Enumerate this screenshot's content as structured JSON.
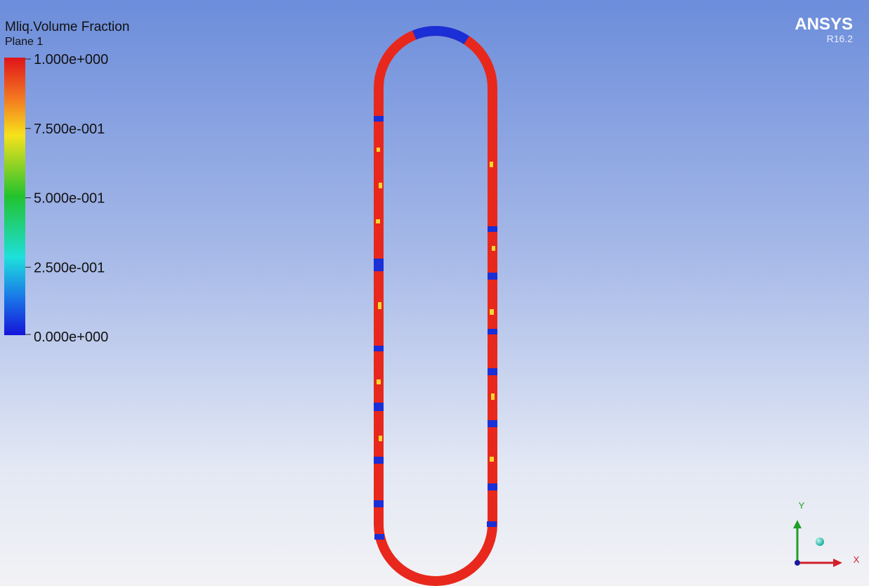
{
  "legend": {
    "title": "Mliq.Volume Fraction",
    "subtitle": "Plane 1",
    "ticks": [
      "1.000e+000",
      "7.500e-001",
      "5.000e-001",
      "2.500e-001",
      "0.000e+000"
    ]
  },
  "logo": {
    "name": "ANSYS",
    "version": "R16.2"
  },
  "axes": {
    "x": "X",
    "y": "Y"
  }
}
